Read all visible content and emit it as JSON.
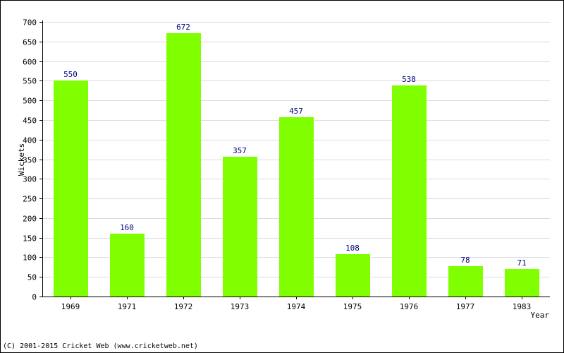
{
  "chart_data": {
    "type": "bar",
    "categories": [
      "1969",
      "1971",
      "1972",
      "1973",
      "1974",
      "1975",
      "1976",
      "1977",
      "1983"
    ],
    "values": [
      550,
      160,
      672,
      357,
      457,
      108,
      538,
      78,
      71
    ],
    "xlabel": "Year",
    "ylabel": "Wickets",
    "ylim": [
      0,
      700
    ],
    "yticks": [
      0,
      50,
      100,
      150,
      200,
      250,
      300,
      350,
      400,
      450,
      500,
      550,
      600,
      650,
      700
    ],
    "grid": true,
    "bar_color": "#7fff00",
    "value_label_color": "#000080"
  },
  "footer": {
    "copyright": "(C) 2001-2015 Cricket Web (www.cricketweb.net)"
  }
}
